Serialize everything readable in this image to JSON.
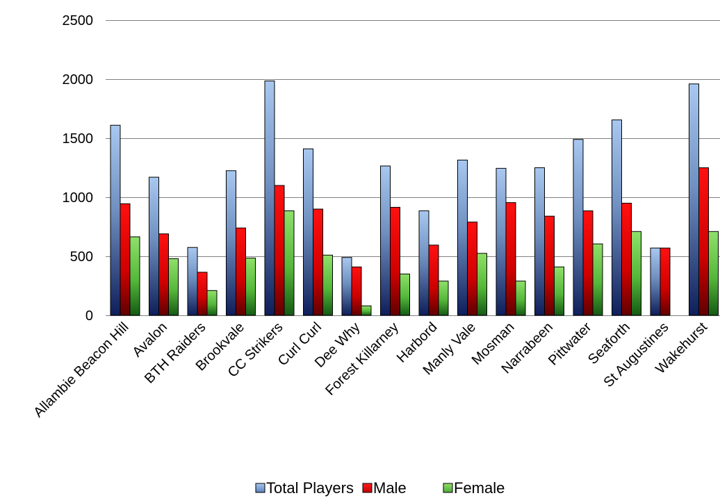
{
  "chart_data": {
    "type": "bar",
    "title": "",
    "xlabel": "",
    "ylabel": "",
    "ylim": [
      0,
      2500
    ],
    "yticks": [
      0,
      500,
      1000,
      1500,
      2000,
      2500
    ],
    "grid": true,
    "legend_position": "bottom",
    "categories": [
      "Allambie Beacon Hill",
      "Avalon",
      "BTH Raiders",
      "Brookvale",
      "CC Strikers",
      "Curl Curl",
      "Dee Why",
      "Forest Killarney",
      "Harbord",
      "Manly Vale",
      "Mosman",
      "Narrabeen",
      "Pittwater",
      "Seaforth",
      "St Augustines",
      "Wakehurst"
    ],
    "series": [
      {
        "name": "Total Players",
        "color": "#8EB4E3",
        "values": [
          1610,
          1170,
          575,
          1225,
          1985,
          1410,
          490,
          1265,
          885,
          1315,
          1245,
          1250,
          1490,
          1655,
          570,
          1960
        ]
      },
      {
        "name": "Male",
        "color": "#FF0000",
        "values": [
          945,
          690,
          365,
          740,
          1100,
          900,
          410,
          915,
          595,
          790,
          955,
          840,
          885,
          950,
          570,
          1250
        ]
      },
      {
        "name": "Female",
        "color": "#66CC33",
        "values": [
          665,
          480,
          210,
          485,
          885,
          510,
          80,
          350,
          290,
          525,
          290,
          410,
          605,
          710,
          null,
          710
        ]
      }
    ]
  }
}
